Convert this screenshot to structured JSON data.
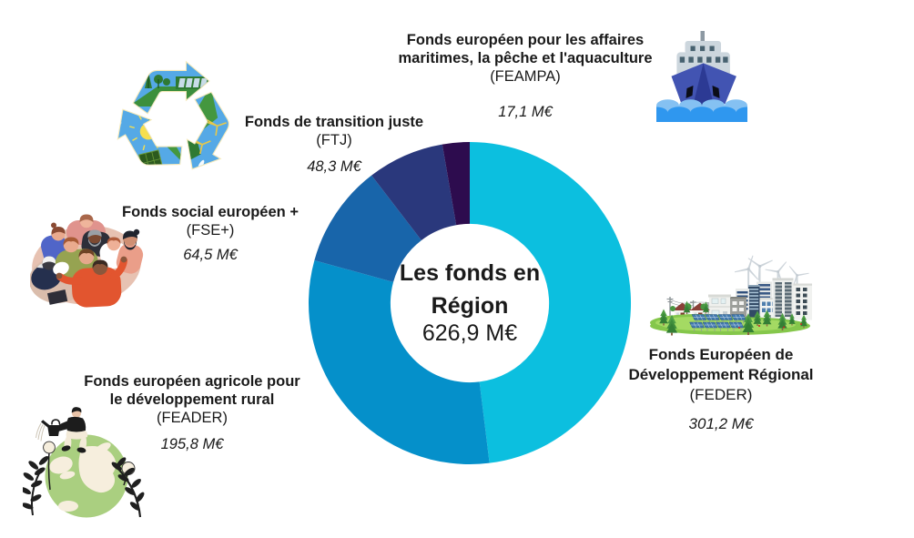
{
  "page": {
    "background": "#ffffff",
    "text_color": "#1a1a1a"
  },
  "chart_data": {
    "type": "donut",
    "title": "Les fonds en Région",
    "center_title": "Les fonds en\nRégion",
    "center_value": "626,9 M€",
    "unit": "M€",
    "total": 626.9,
    "start_angle_deg": 0,
    "direction": "clockwise",
    "inner_radius_ratio": 0.492,
    "legend_position": "around",
    "segments": [
      {
        "id": "feder",
        "title": "Fonds Européen de\nDéveloppement Régional",
        "acronym": "(FEDER)",
        "value": 301.2,
        "value_label": "301,2 M€",
        "color": "#0cbfdf"
      },
      {
        "id": "feader",
        "title": "Fonds européen agricole pour\nle développement rural",
        "acronym": "(FEADER)",
        "value": 195.8,
        "value_label": "195,8 M€",
        "color": "#0590ca"
      },
      {
        "id": "fse",
        "title": "Fonds social européen +",
        "acronym": "(FSE+)",
        "value": 64.5,
        "value_label": "64,5 M€",
        "color": "#1865aa"
      },
      {
        "id": "ftj",
        "title": "Fonds de transition juste",
        "acronym": "(FTJ)",
        "value": 48.3,
        "value_label": "48,3 M€",
        "color": "#2a387c"
      },
      {
        "id": "feampa",
        "title": "Fonds européen pour les affaires\nmaritimes, la pêche et l'aquaculture",
        "acronym": "(FEAMPA)",
        "value": 17.1,
        "value_label": "17,1 M€",
        "color": "#2d0c4e"
      }
    ]
  },
  "illustrations": [
    {
      "name": "recycling-collage-icon",
      "depicts": "recycling arrows made of nature and clean-energy scenes"
    },
    {
      "name": "group-hug-icon",
      "depicts": "diverse group of people hugging in a circle"
    },
    {
      "name": "earth-care-icon",
      "depicts": "person watering a plant-covered globe"
    },
    {
      "name": "ship-icon",
      "depicts": "fishing ship on waves"
    },
    {
      "name": "green-city-icon",
      "depicts": "sustainable city with wind turbines and solar panels"
    }
  ]
}
